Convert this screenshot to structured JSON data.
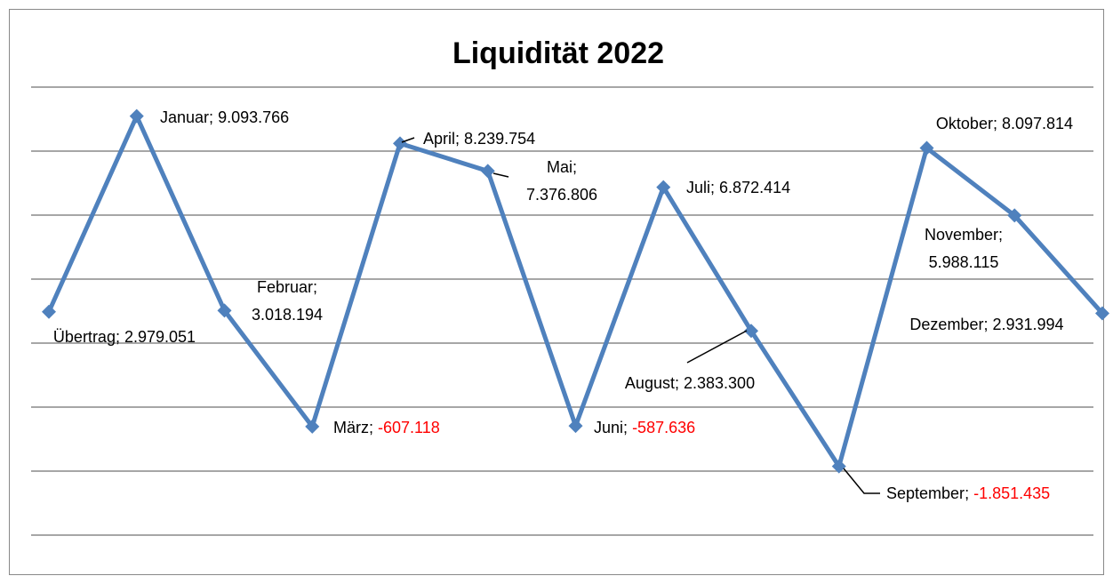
{
  "chart_data": {
    "type": "line",
    "title": "Liquidität 2022",
    "categories": [
      "Übertrag",
      "Januar",
      "Februar",
      "März",
      "April",
      "Mai",
      "Juni",
      "Juli",
      "August",
      "September",
      "Oktober",
      "November",
      "Dezember"
    ],
    "series": [
      {
        "name": "Liquidität 2022",
        "color": "#4f81bd",
        "values": [
          2979051,
          9093766,
          3018194,
          -607118,
          8239754,
          7376806,
          -587636,
          6872414,
          2383300,
          -1851435,
          8097814,
          5988115,
          2931994
        ],
        "value_labels": [
          "2.979.051",
          "9.093.766",
          "3.018.194",
          "-607.118",
          "8.239.754",
          "7.376.806",
          "-587.636",
          "6.872.414",
          "2.383.300",
          "-1.851.435",
          "8.097.814",
          "5.988.115",
          "2.931.994"
        ]
      }
    ],
    "label_separator": ";",
    "negative_label_color": "#ff0000",
    "ylim": [
      -4000000,
      10000000
    ],
    "yticks": [
      -4000000,
      -2000000,
      0,
      2000000,
      4000000,
      6000000,
      8000000,
      10000000
    ],
    "grid": true
  }
}
